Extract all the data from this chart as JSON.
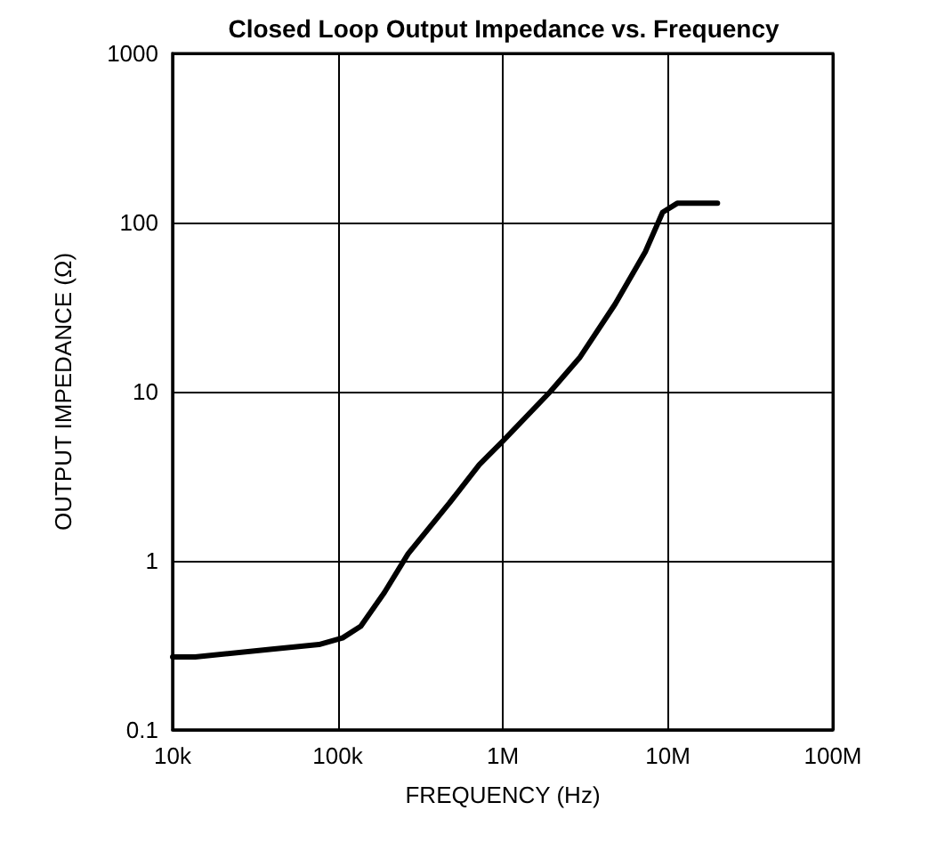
{
  "chart_data": {
    "type": "line",
    "title": "Closed Loop Output Impedance vs. Frequency",
    "xlabel": "FREQUENCY (Hz)",
    "ylabel": "OUTPUT IMPEDANCE (Ω)",
    "log": "xy",
    "grid": true,
    "marker": "none",
    "line_style": "solid",
    "xlim": [
      10000,
      100000000
    ],
    "xticks": [
      {
        "value": 10000,
        "label": "10k"
      },
      {
        "value": 100000,
        "label": "100k"
      },
      {
        "value": 1000000,
        "label": "1M"
      },
      {
        "value": 10000000,
        "label": "10M"
      },
      {
        "value": 100000000,
        "label": "100M"
      }
    ],
    "ylim": [
      0.1,
      1000
    ],
    "yticks": [
      0.1,
      1,
      10,
      100,
      1000
    ],
    "series": [
      {
        "color": "#000000",
        "x": [
          10000,
          13700,
          40000,
          77000,
          107000,
          138000,
          192000,
          267000,
          476000,
          720000,
          1000000,
          1940000,
          2940000,
          4800000,
          7300000,
          9300000,
          11400000,
          20000000
        ],
        "values": [
          0.27,
          0.27,
          0.3,
          0.32,
          0.35,
          0.41,
          0.65,
          1.1,
          2.2,
          3.7,
          5.1,
          10,
          16,
          33,
          67,
          115,
          130,
          130
        ]
      }
    ]
  }
}
